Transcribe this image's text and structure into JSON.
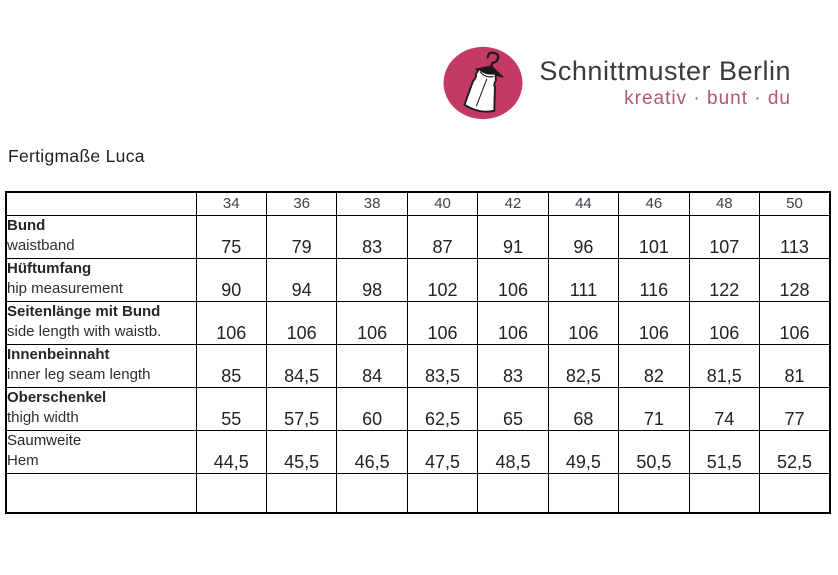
{
  "logo": {
    "brand": "Schnittmuster Berlin",
    "tagline": "kreativ · bunt · du",
    "circle_color": "#c23a63",
    "tagline_color": "#b25577",
    "icon": "dress-on-hanger-icon"
  },
  "page": {
    "title": "Fertigmaße Luca"
  },
  "table": {
    "sizes": [
      "34",
      "36",
      "38",
      "40",
      "42",
      "44",
      "46",
      "48",
      "50"
    ],
    "rows": [
      {
        "label_de": "Bund",
        "label_en": "waistband",
        "bold": true,
        "values": [
          "75",
          "79",
          "83",
          "87",
          "91",
          "96",
          "101",
          "107",
          "113"
        ]
      },
      {
        "label_de": "Hüftumfang",
        "label_en": "hip measurement",
        "bold": true,
        "values": [
          "90",
          "94",
          "98",
          "102",
          "106",
          "111",
          "116",
          "122",
          "128"
        ]
      },
      {
        "label_de": "Seitenlänge mit Bund",
        "label_en": "side length with waistb.",
        "bold": true,
        "values": [
          "106",
          "106",
          "106",
          "106",
          "106",
          "106",
          "106",
          "106",
          "106"
        ]
      },
      {
        "label_de": "Innenbeinnaht",
        "label_en": "inner leg seam length",
        "bold": true,
        "values": [
          "85",
          "84,5",
          "84",
          "83,5",
          "83",
          "82,5",
          "82",
          "81,5",
          "81"
        ]
      },
      {
        "label_de": "Oberschenkel",
        "label_en": "thigh width",
        "bold": true,
        "values": [
          "55",
          "57,5",
          "60",
          "62,5",
          "65",
          "68",
          "71",
          "74",
          "77"
        ]
      },
      {
        "label_de": "Saumweite",
        "label_en": "Hem",
        "bold": false,
        "values": [
          "44,5",
          "45,5",
          "46,5",
          "47,5",
          "48,5",
          "49,5",
          "50,5",
          "51,5",
          "52,5"
        ]
      },
      {
        "label_de": "",
        "label_en": "",
        "bold": false,
        "values": [
          "",
          "",
          "",
          "",
          "",
          "",
          "",
          "",
          ""
        ]
      }
    ]
  }
}
